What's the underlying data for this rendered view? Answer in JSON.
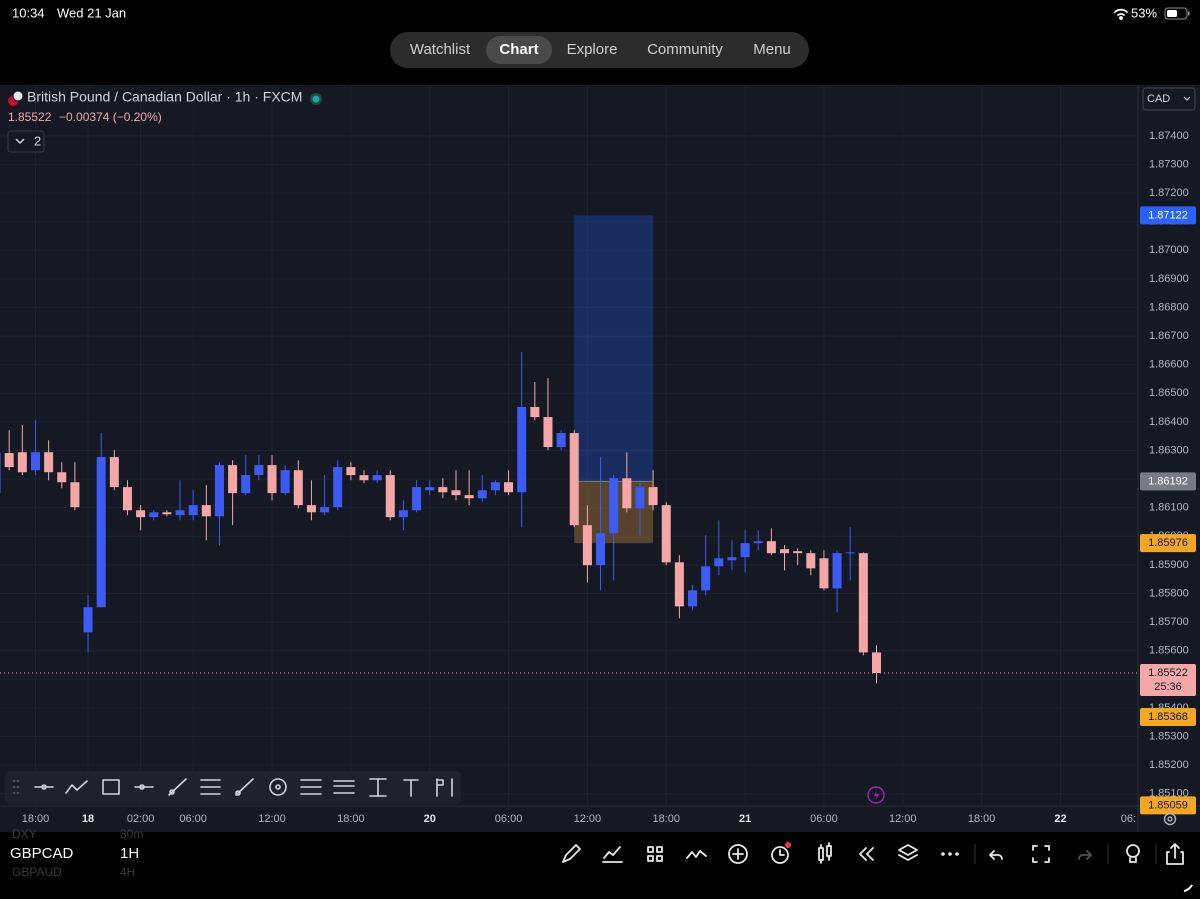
{
  "status_bar": {
    "time": "10:34",
    "date": "Wed 21 Jan",
    "battery": "53%"
  },
  "nav": {
    "tabs": [
      "Watchlist",
      "Chart",
      "Explore",
      "Community",
      "Menu"
    ],
    "active": 1
  },
  "header": {
    "symbol": "British Pound / Canadian Dollar · 1h · FXCM",
    "price": "1.85522",
    "change": "−0.00374 (−0.20%)",
    "indicators": "2",
    "currency": "CAD"
  },
  "chart_data": {
    "type": "candlestick",
    "open": [
      1.86151,
      1.86291,
      1.86294,
      1.86231,
      1.86294,
      1.86224,
      1.86189,
      1.85664,
      1.85752,
      1.86277,
      1.86172,
      1.86091,
      1.86067,
      1.86084,
      1.86074,
      1.86074,
      1.86109,
      1.8607,
      1.86249,
      1.86151,
      1.86214,
      1.86249,
      1.86151,
      1.86231,
      1.86109,
      1.86084,
      1.86102,
      1.86242,
      1.86214,
      1.86196,
      1.86214,
      1.86067,
      1.86091,
      1.86161,
      1.86172,
      1.86161,
      1.86144,
      1.86133,
      1.86161,
      1.86189,
      1.86154,
      1.86452,
      1.86417,
      1.86312,
      1.86361,
      1.86039,
      1.85899,
      1.86011,
      1.86203,
      1.86098,
      1.86172,
      1.86109,
      1.85909,
      1.85755,
      1.85811,
      1.85895,
      1.85916,
      1.85927,
      1.85976,
      1.85983,
      1.85955,
      1.85948,
      1.85941,
      1.85923,
      1.85818,
      1.85941,
      1.85941,
      1.85594
    ],
    "high": [
      1.86336,
      1.86371,
      1.86389,
      1.86406,
      1.86336,
      1.86259,
      1.86259,
      1.85794,
      1.86361,
      1.86301,
      1.86196,
      1.86109,
      1.86091,
      1.86091,
      1.86196,
      1.86161,
      1.86179,
      1.86259,
      1.86266,
      1.86284,
      1.86284,
      1.86284,
      1.86249,
      1.86266,
      1.86196,
      1.86214,
      1.86266,
      1.86259,
      1.86231,
      1.86231,
      1.86231,
      1.86126,
      1.86196,
      1.86196,
      1.86203,
      1.86231,
      1.86231,
      1.86214,
      1.86196,
      1.86231,
      1.86644,
      1.86539,
      1.86553,
      1.86371,
      1.86371,
      1.86109,
      1.86277,
      1.86214,
      1.86294,
      1.86196,
      1.86231,
      1.86119,
      1.85934,
      1.85829,
      1.86004,
      1.86056,
      1.85986,
      1.86021,
      1.86021,
      1.86028,
      1.85969,
      1.85958,
      1.85951,
      1.85951,
      1.85951,
      1.86032,
      1.85944,
      1.85619
    ],
    "low": [
      1.86109,
      1.86231,
      1.86214,
      1.86214,
      1.86196,
      1.86168,
      1.86091,
      1.85594,
      1.85752,
      1.86161,
      1.86074,
      1.86021,
      1.86056,
      1.8607,
      1.86056,
      1.86056,
      1.85986,
      1.85969,
      1.86039,
      1.86144,
      1.86196,
      1.86126,
      1.86144,
      1.86098,
      1.86056,
      1.86074,
      1.86091,
      1.86196,
      1.86186,
      1.86186,
      1.86056,
      1.86021,
      1.86084,
      1.86144,
      1.86133,
      1.86126,
      1.86109,
      1.86119,
      1.86144,
      1.86144,
      1.86032,
      1.86406,
      1.86301,
      1.86301,
      1.86032,
      1.85839,
      1.85811,
      1.85846,
      1.86084,
      1.86004,
      1.86091,
      1.85899,
      1.85713,
      1.85741,
      1.85794,
      1.85864,
      1.85881,
      1.85874,
      1.85951,
      1.85934,
      1.85881,
      1.85899,
      1.85864,
      1.85811,
      1.85734,
      1.85846,
      1.85584,
      1.85486
    ],
    "close": [
      1.86291,
      1.86242,
      1.86224,
      1.86294,
      1.86224,
      1.86189,
      1.86102,
      1.85752,
      1.86277,
      1.86172,
      1.86091,
      1.86067,
      1.86084,
      1.86077,
      1.86091,
      1.86109,
      1.8607,
      1.86249,
      1.86151,
      1.86214,
      1.86249,
      1.86151,
      1.86231,
      1.86109,
      1.86084,
      1.86102,
      1.86242,
      1.86214,
      1.86196,
      1.86214,
      1.86067,
      1.86091,
      1.86172,
      1.86172,
      1.86154,
      1.86144,
      1.86133,
      1.86161,
      1.86189,
      1.86154,
      1.86452,
      1.86417,
      1.86312,
      1.86361,
      1.86039,
      1.85899,
      1.86011,
      1.86203,
      1.86098,
      1.86172,
      1.86109,
      1.85909,
      1.85755,
      1.85811,
      1.85895,
      1.85923,
      1.85927,
      1.85976,
      1.85983,
      1.85941,
      1.85941,
      1.85941,
      1.85888,
      1.85818,
      1.85941,
      1.85944,
      1.85594,
      1.85522
    ],
    "up_color": "#3d5cf5",
    "down_color": "#f4a7a6",
    "xlim": [
      0.3,
      86.9
    ],
    "xticks": [
      {
        "value": 3,
        "label": "18:00"
      },
      {
        "value": 7,
        "label": "18"
      },
      {
        "value": 11,
        "label": "02:00"
      },
      {
        "value": 15,
        "label": "06:00"
      },
      {
        "value": 21,
        "label": "12:00"
      },
      {
        "value": 27,
        "label": "18:00"
      },
      {
        "value": 33,
        "label": "20"
      },
      {
        "value": 39,
        "label": "06:00"
      },
      {
        "value": 45,
        "label": "12:00"
      },
      {
        "value": 51,
        "label": "18:00"
      },
      {
        "value": 57,
        "label": "21"
      },
      {
        "value": 63,
        "label": "06:00"
      },
      {
        "value": 69,
        "label": "12:00"
      },
      {
        "value": 75,
        "label": "18:00"
      },
      {
        "value": 81,
        "label": "22"
      },
      {
        "value": 87,
        "label": "06:"
      }
    ],
    "ylim": [
      1.85057,
      1.87578
    ],
    "yticks": [
      {
        "value": 1.851,
        "label": "1.85100"
      },
      {
        "value": 1.852,
        "label": "1.85200"
      },
      {
        "value": 1.853,
        "label": "1.85300"
      },
      {
        "value": 1.854,
        "label": "1.85400"
      },
      {
        "value": 1.855,
        "label": "1.85500"
      },
      {
        "value": 1.856,
        "label": "1.85600"
      },
      {
        "value": 1.857,
        "label": "1.85700"
      },
      {
        "value": 1.858,
        "label": "1.85800"
      },
      {
        "value": 1.859,
        "label": "1.85900"
      },
      {
        "value": 1.86,
        "label": "1.86000"
      },
      {
        "value": 1.861,
        "label": "1.86100"
      },
      {
        "value": 1.862,
        "label": "1.86200"
      },
      {
        "value": 1.863,
        "label": "1.86300"
      },
      {
        "value": 1.864,
        "label": "1.86400"
      },
      {
        "value": 1.865,
        "label": "1.86500"
      },
      {
        "value": 1.866,
        "label": "1.86600"
      },
      {
        "value": 1.867,
        "label": "1.86700"
      },
      {
        "value": 1.868,
        "label": "1.86800"
      },
      {
        "value": 1.869,
        "label": "1.86900"
      },
      {
        "value": 1.87,
        "label": "1.87000"
      },
      {
        "value": 1.871,
        "label": "1.87100"
      },
      {
        "value": 1.872,
        "label": "1.87200"
      },
      {
        "value": 1.873,
        "label": "1.87300"
      },
      {
        "value": 1.874,
        "label": "1.87400"
      }
    ],
    "grid": true,
    "last_price": {
      "value": 1.85522,
      "countdown": "25:36",
      "color": "#f4a7a6"
    },
    "price_labels": [
      {
        "value": 1.85368,
        "color": "#f5a623"
      },
      {
        "value": 1.85059,
        "color": "#f5a623"
      }
    ],
    "position": {
      "x_range": [
        44,
        50
      ],
      "target": 1.87122,
      "entry": 1.86192,
      "stop": 1.85976,
      "target_color": "#2962ff",
      "entry_color": "#787b86",
      "stop_color": "#f5a623"
    }
  },
  "watchlist": {
    "rows": [
      {
        "symbol": "DXY",
        "interval": "30m"
      },
      {
        "symbol": "GBPCAD",
        "interval": "1H"
      },
      {
        "symbol": "GBPAUD",
        "interval": "4H"
      }
    ],
    "selected": 1
  }
}
